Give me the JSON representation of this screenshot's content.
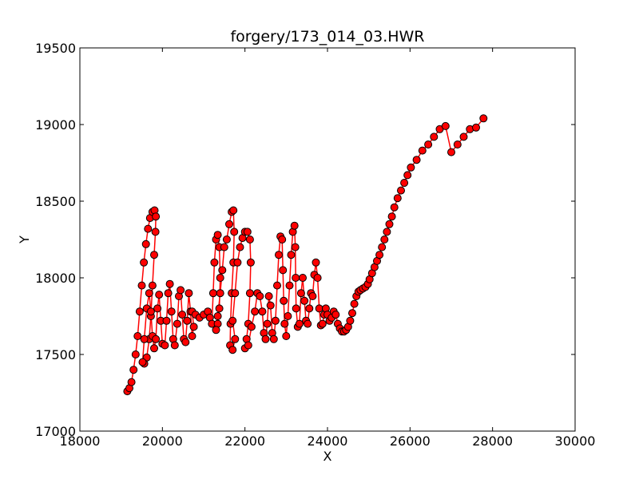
{
  "chart_data": {
    "type": "scatter",
    "title": "forgery/173_014_03.HWR",
    "xlabel": "X",
    "ylabel": "Y",
    "xlim": [
      18000,
      30000
    ],
    "ylim": [
      17000,
      19500
    ],
    "x_ticks": [
      18000,
      20000,
      22000,
      24000,
      26000,
      28000,
      30000
    ],
    "y_ticks": [
      17000,
      17500,
      18000,
      18500,
      19000,
      19500
    ],
    "x_tick_labels": [
      "18000",
      "20000",
      "22000",
      "24000",
      "26000",
      "28000",
      "30000"
    ],
    "y_tick_labels": [
      "17000",
      "17500",
      "18000",
      "18500",
      "19000",
      "19500"
    ],
    "grid": false,
    "legend": "none",
    "line_color": "#ff0000",
    "marker_face_color": "#ff0000",
    "marker_edge_color": "#000000",
    "series": [
      {
        "points": [
          [
            19150,
            17260
          ],
          [
            19200,
            17280
          ],
          [
            19250,
            17320
          ],
          [
            19300,
            17400
          ],
          [
            19350,
            17500
          ],
          [
            19400,
            17620
          ],
          [
            19450,
            17780
          ],
          [
            19500,
            17950
          ],
          [
            19550,
            18100
          ],
          [
            19600,
            18220
          ],
          [
            19650,
            18320
          ],
          [
            19700,
            18390
          ],
          [
            19760,
            18430
          ],
          [
            19810,
            18440
          ],
          [
            19840,
            18400
          ],
          [
            19830,
            18300
          ],
          [
            19800,
            18150
          ],
          [
            19760,
            17950
          ],
          [
            19720,
            17750
          ],
          [
            19680,
            17600
          ],
          [
            19620,
            17480
          ],
          [
            19560,
            17440
          ],
          [
            19520,
            17450
          ],
          [
            19560,
            17600
          ],
          [
            19620,
            17800
          ],
          [
            19680,
            17900
          ],
          [
            19720,
            17780
          ],
          [
            19760,
            17620
          ],
          [
            19800,
            17540
          ],
          [
            19840,
            17600
          ],
          [
            19880,
            17800
          ],
          [
            19920,
            17890
          ],
          [
            19960,
            17720
          ],
          [
            20000,
            17570
          ],
          [
            20060,
            17560
          ],
          [
            20100,
            17720
          ],
          [
            20140,
            17900
          ],
          [
            20180,
            17960
          ],
          [
            20220,
            17780
          ],
          [
            20260,
            17600
          ],
          [
            20300,
            17560
          ],
          [
            20360,
            17700
          ],
          [
            20400,
            17880
          ],
          [
            20440,
            17920
          ],
          [
            20480,
            17760
          ],
          [
            20520,
            17600
          ],
          [
            20560,
            17580
          ],
          [
            20600,
            17720
          ],
          [
            20640,
            17900
          ],
          [
            20680,
            17780
          ],
          [
            20720,
            17620
          ],
          [
            20760,
            17680
          ],
          [
            20720,
            17780
          ],
          [
            20800,
            17760
          ],
          [
            20900,
            17740
          ],
          [
            21000,
            17760
          ],
          [
            21100,
            17780
          ],
          [
            21150,
            17740
          ],
          [
            21200,
            17700
          ],
          [
            21230,
            17900
          ],
          [
            21260,
            18100
          ],
          [
            21300,
            18250
          ],
          [
            21340,
            18280
          ],
          [
            21380,
            18200
          ],
          [
            21400,
            18000
          ],
          [
            21380,
            17800
          ],
          [
            21340,
            17700
          ],
          [
            21300,
            17660
          ],
          [
            21340,
            17750
          ],
          [
            21400,
            17900
          ],
          [
            21450,
            18050
          ],
          [
            21500,
            18200
          ],
          [
            21560,
            18250
          ],
          [
            21620,
            18350
          ],
          [
            21680,
            18430
          ],
          [
            21720,
            18440
          ],
          [
            21740,
            18300
          ],
          [
            21720,
            18100
          ],
          [
            21680,
            17900
          ],
          [
            21650,
            17700
          ],
          [
            21640,
            17560
          ],
          [
            21700,
            17530
          ],
          [
            21760,
            17600
          ],
          [
            21700,
            17720
          ],
          [
            21760,
            17900
          ],
          [
            21820,
            18100
          ],
          [
            21880,
            18200
          ],
          [
            21940,
            18260
          ],
          [
            22000,
            18300
          ],
          [
            22060,
            18300
          ],
          [
            22120,
            18250
          ],
          [
            22140,
            18100
          ],
          [
            22120,
            17900
          ],
          [
            22080,
            17700
          ],
          [
            22040,
            17600
          ],
          [
            22000,
            17540
          ],
          [
            22080,
            17560
          ],
          [
            22160,
            17680
          ],
          [
            22240,
            17780
          ],
          [
            22300,
            17900
          ],
          [
            22360,
            17880
          ],
          [
            22420,
            17780
          ],
          [
            22460,
            17640
          ],
          [
            22500,
            17600
          ],
          [
            22540,
            17700
          ],
          [
            22580,
            17880
          ],
          [
            22620,
            17820
          ],
          [
            22660,
            17640
          ],
          [
            22700,
            17600
          ],
          [
            22740,
            17720
          ],
          [
            22780,
            17950
          ],
          [
            22820,
            18150
          ],
          [
            22860,
            18270
          ],
          [
            22900,
            18250
          ],
          [
            22920,
            18050
          ],
          [
            22940,
            17850
          ],
          [
            22960,
            17700
          ],
          [
            23000,
            17620
          ],
          [
            23040,
            17750
          ],
          [
            23080,
            17950
          ],
          [
            23120,
            18150
          ],
          [
            23160,
            18300
          ],
          [
            23200,
            18340
          ],
          [
            23220,
            18200
          ],
          [
            23230,
            18000
          ],
          [
            23240,
            17800
          ],
          [
            23280,
            17680
          ],
          [
            23320,
            17700
          ],
          [
            23360,
            17900
          ],
          [
            23400,
            18000
          ],
          [
            23440,
            17850
          ],
          [
            23480,
            17720
          ],
          [
            23520,
            17700
          ],
          [
            23560,
            17800
          ],
          [
            23600,
            17900
          ],
          [
            23640,
            17880
          ],
          [
            23680,
            18020
          ],
          [
            23720,
            18100
          ],
          [
            23760,
            18000
          ],
          [
            23800,
            17800
          ],
          [
            23840,
            17690
          ],
          [
            23880,
            17700
          ],
          [
            23920,
            17760
          ],
          [
            23960,
            17800
          ],
          [
            24000,
            17760
          ],
          [
            24050,
            17720
          ],
          [
            24100,
            17740
          ],
          [
            24150,
            17780
          ],
          [
            24200,
            17760
          ],
          [
            24250,
            17700
          ],
          [
            24300,
            17670
          ],
          [
            24350,
            17650
          ],
          [
            24400,
            17650
          ],
          [
            24450,
            17660
          ],
          [
            24500,
            17680
          ],
          [
            24550,
            17720
          ],
          [
            24600,
            17770
          ],
          [
            24650,
            17830
          ],
          [
            24700,
            17880
          ],
          [
            24750,
            17910
          ],
          [
            24800,
            17920
          ],
          [
            24860,
            17930
          ],
          [
            24920,
            17940
          ],
          [
            24980,
            17960
          ],
          [
            25020,
            17990
          ],
          [
            25080,
            18030
          ],
          [
            25140,
            18070
          ],
          [
            25200,
            18110
          ],
          [
            25260,
            18150
          ],
          [
            25320,
            18200
          ],
          [
            25380,
            18250
          ],
          [
            25440,
            18300
          ],
          [
            25500,
            18350
          ],
          [
            25560,
            18400
          ],
          [
            25620,
            18460
          ],
          [
            25700,
            18520
          ],
          [
            25780,
            18570
          ],
          [
            25860,
            18620
          ],
          [
            25940,
            18670
          ],
          [
            26020,
            18720
          ],
          [
            26160,
            18770
          ],
          [
            26300,
            18830
          ],
          [
            26440,
            18870
          ],
          [
            26580,
            18920
          ],
          [
            26720,
            18970
          ],
          [
            26860,
            18990
          ],
          [
            27000,
            18820
          ],
          [
            27150,
            18870
          ],
          [
            27300,
            18920
          ],
          [
            27450,
            18970
          ],
          [
            27600,
            18980
          ],
          [
            27780,
            19040
          ]
        ]
      }
    ]
  }
}
